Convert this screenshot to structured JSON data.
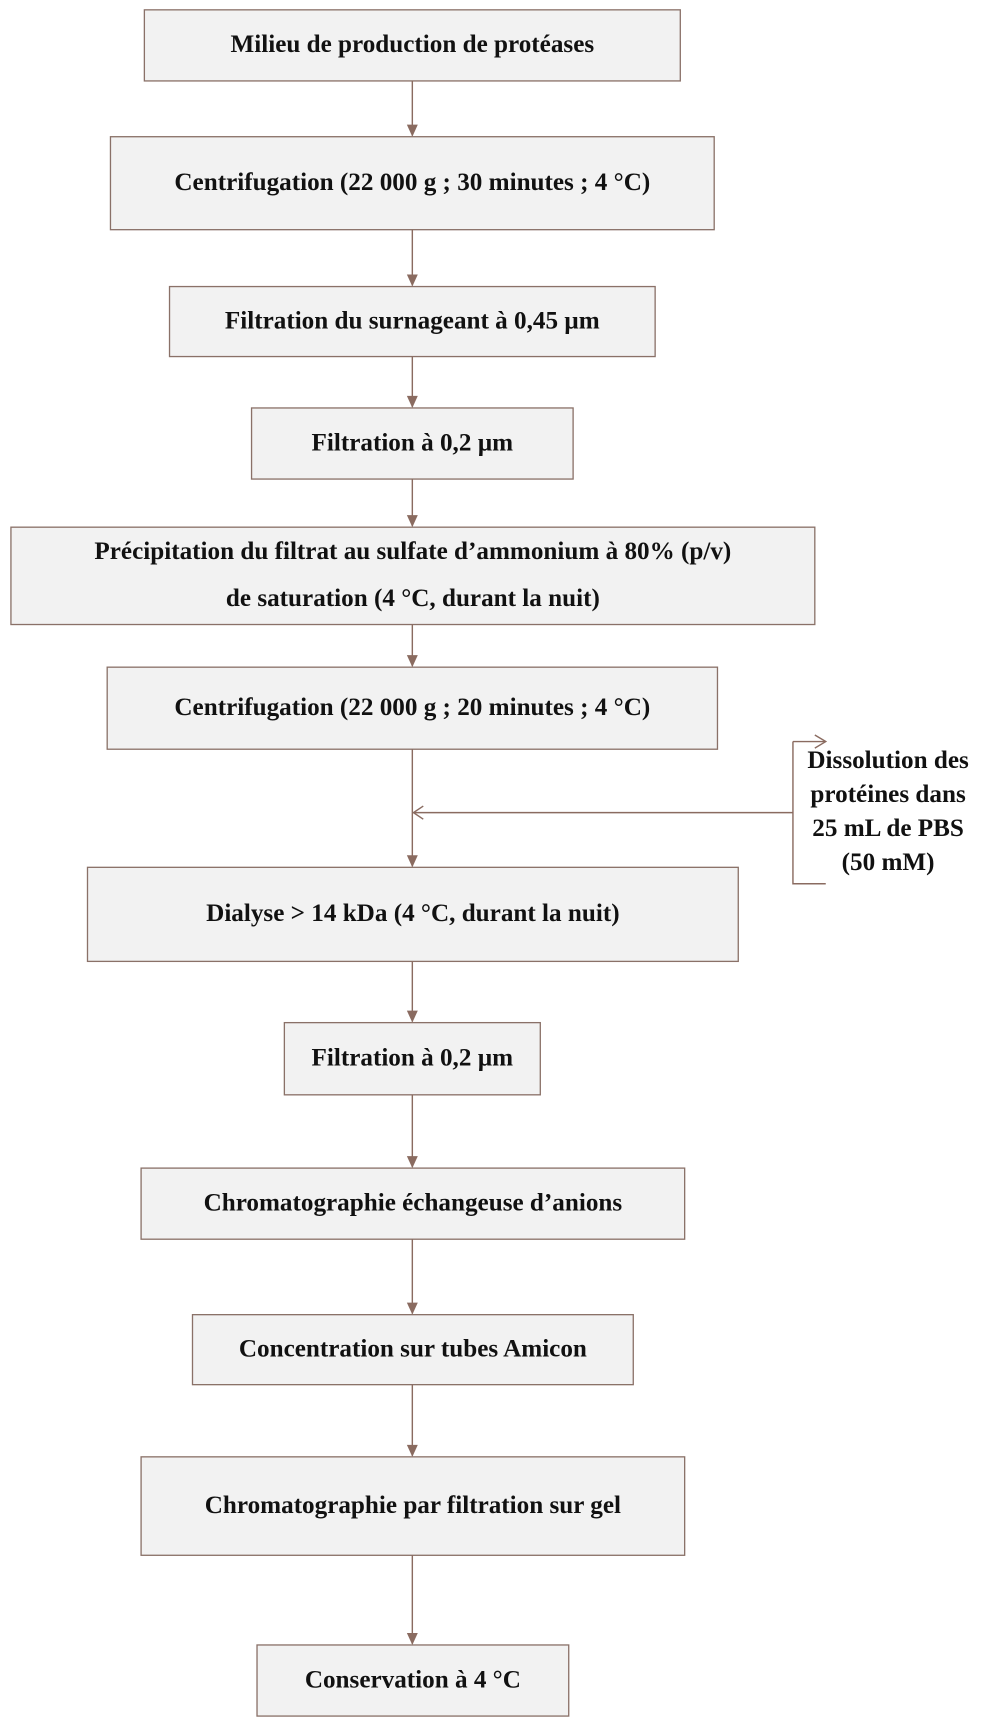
{
  "steps": [
    {
      "lines": [
        "Milieu de production de protéases"
      ]
    },
    {
      "lines": [
        "Centrifugation (22 000 g ; 30 minutes ; 4 °C)"
      ]
    },
    {
      "lines": [
        "Filtration du surnageant  à 0,45 µm"
      ]
    },
    {
      "lines": [
        "Filtration à 0,2 µm"
      ]
    },
    {
      "lines": [
        "Précipitation du filtrat au sulfate d’ammonium à 80% (p/v)",
        "de saturation (4 °C, durant la nuit)"
      ]
    },
    {
      "lines": [
        "Centrifugation (22 000 g ; 20 minutes ; 4 °C)"
      ]
    },
    {
      "lines": [
        "Dialyse > 14 kDa  (4 °C, durant la nuit)"
      ]
    },
    {
      "lines": [
        "Filtration à 0,2 µm"
      ]
    },
    {
      "lines": [
        "Chromatographie échangeuse d’anions"
      ]
    },
    {
      "lines": [
        "Concentration sur tubes Amicon"
      ]
    },
    {
      "lines": [
        "Chromatographie par filtration sur gel"
      ]
    },
    {
      "lines": [
        "Conservation à 4 °C"
      ]
    }
  ],
  "side_note": {
    "lines": [
      "Dissolution des",
      "protéines dans",
      "25 mL de PBS",
      "(50 mM)"
    ]
  }
}
